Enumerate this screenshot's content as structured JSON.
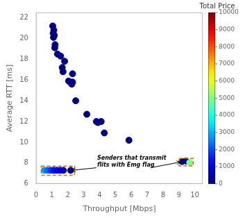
{
  "chart_data": {
    "type": "scatter",
    "xlabel": "Throughput [Mbps]",
    "ylabel": "Average RTT [ms]",
    "xlim": [
      0,
      10.5
    ],
    "ylim": [
      6,
      22.5
    ],
    "xticks": [
      0,
      1,
      2,
      3,
      4,
      5,
      6,
      7,
      8,
      9,
      10
    ],
    "yticks": [
      6,
      8,
      10,
      12,
      14,
      16,
      18,
      20,
      22
    ],
    "grid": false,
    "series": [
      {
        "x": [
          1.05,
          1.12,
          1.08,
          1.15,
          1.1,
          1.2,
          1.18,
          1.35,
          1.55,
          1.65,
          1.7,
          1.8,
          2.05,
          2.15,
          2.25,
          2.3,
          2.3,
          2.5,
          3.2,
          3.8,
          3.9,
          4.1,
          4.3,
          5.85
        ],
        "values": [
          21.2,
          20.8,
          20.5,
          20.3,
          20.1,
          19.4,
          19.1,
          18.5,
          18.3,
          17.2,
          16.8,
          17.8,
          15.9,
          15.8,
          15.6,
          16.6,
          15.8,
          14.0,
          12.7,
          12.0,
          11.9,
          12.0,
          10.9,
          10.2
        ],
        "color_values": [
          0,
          0,
          0,
          0,
          0,
          0,
          0,
          0,
          0,
          0,
          0,
          0,
          0,
          0,
          0,
          0,
          0,
          0,
          0,
          0,
          0,
          0,
          0,
          0
        ]
      },
      {
        "x": [
          0.52,
          0.72,
          0.92,
          1.12,
          1.32,
          1.52,
          1.72,
          2.18
        ],
        "values": [
          7.3,
          7.3,
          7.3,
          7.3,
          7.3,
          7.3,
          7.3,
          7.3
        ],
        "color_values": [
          2800,
          2300,
          1800,
          1400,
          1100,
          800,
          500,
          200
        ]
      },
      {
        "x": [
          9.2,
          9.45,
          9.68
        ],
        "values": [
          8.15,
          8.2,
          8.05
        ],
        "color_values": [
          100,
          100,
          5000
        ]
      }
    ],
    "colorbar": {
      "title": "Total Price",
      "lim": [
        0,
        10000
      ],
      "ticks": [
        0,
        1000,
        2000,
        3000,
        4000,
        5000,
        6000,
        7000,
        8000,
        9000,
        10000
      ]
    },
    "rectangles": [
      {
        "x": 0.33,
        "y": 6.82,
        "width": 2.1,
        "height": 0.88,
        "color": "#c87000"
      },
      {
        "x": 9.02,
        "y": 7.72,
        "width": 0.88,
        "height": 0.72,
        "color": "#c87000"
      }
    ],
    "arrows": [
      {
        "from": [
          3.8,
          7.55
        ],
        "to": [
          2.25,
          7.3
        ]
      },
      {
        "from": [
          7.2,
          7.55
        ],
        "to": [
          9.1,
          8.1
        ]
      }
    ],
    "annotations": [
      {
        "text": "Senders that transmit\nflits with Emg flag",
        "x": 3.85,
        "y": 7.55
      }
    ]
  }
}
